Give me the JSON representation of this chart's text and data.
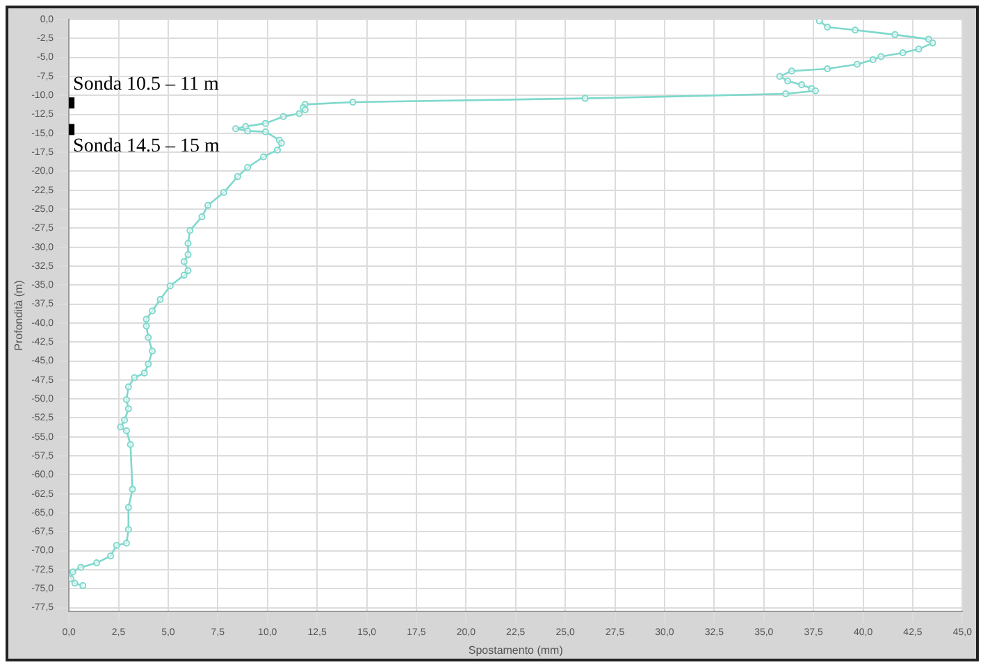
{
  "chart_data": {
    "type": "line",
    "xlabel": "Spostamento (mm)",
    "ylabel": "Profondità (m)",
    "series": [
      {
        "color": "#7fd8cc",
        "x": [
          37.8,
          38.2,
          39.6,
          41.6,
          43.3,
          43.5,
          42.8,
          42.0,
          40.9,
          40.5,
          39.7,
          38.2,
          36.4,
          35.8,
          36.2,
          36.9,
          37.4,
          37.6,
          36.1,
          26.0,
          14.3,
          11.9,
          11.8,
          11.9,
          11.6,
          10.8,
          9.9,
          8.9,
          8.4,
          9.0,
          9.9,
          10.6,
          10.7,
          10.5,
          9.8,
          9.0,
          8.5,
          7.8,
          7.0,
          6.7,
          6.1,
          6.0,
          6.0,
          5.8,
          6.0,
          5.8,
          5.1,
          4.6,
          4.2,
          3.9,
          3.9,
          4.0,
          4.2,
          4.0,
          3.8,
          3.3,
          3.0,
          2.9,
          3.0,
          2.8,
          2.6,
          2.9,
          3.1,
          3.2,
          3.0,
          3.0,
          2.9,
          2.4,
          2.1,
          1.4,
          0.6,
          0.2,
          0.1,
          0.3,
          0.7
        ],
        "values": [
          -0.2,
          -1.0,
          -1.4,
          -2.0,
          -2.6,
          -3.1,
          -3.9,
          -4.4,
          -4.9,
          -5.3,
          -5.9,
          -6.5,
          -6.8,
          -7.5,
          -8.1,
          -8.6,
          -9.1,
          -9.4,
          -9.8,
          -10.4,
          -10.9,
          -11.2,
          -11.6,
          -11.9,
          -12.4,
          -12.8,
          -13.7,
          -14.1,
          -14.4,
          -14.7,
          -14.8,
          -15.9,
          -16.3,
          -17.2,
          -18.1,
          -19.5,
          -20.7,
          -22.8,
          -24.5,
          -26.0,
          -27.8,
          -29.5,
          -31.0,
          -31.9,
          -33.1,
          -33.7,
          -35.1,
          -36.9,
          -38.4,
          -39.5,
          -40.4,
          -41.9,
          -43.7,
          -45.4,
          -46.6,
          -47.2,
          -48.4,
          -50.1,
          -51.3,
          -52.8,
          -53.7,
          -54.2,
          -56.0,
          -61.9,
          -64.3,
          -67.2,
          -69.0,
          -69.3,
          -70.7,
          -71.6,
          -72.2,
          -72.8,
          -73.7,
          -74.3,
          -74.6
        ]
      }
    ],
    "xlim": [
      0,
      45
    ],
    "xticks": [
      {
        "value": 0,
        "label": "0,0"
      },
      {
        "value": 2.5,
        "label": "2,5"
      },
      {
        "value": 5,
        "label": "5,0"
      },
      {
        "value": 7.5,
        "label": "7,5"
      },
      {
        "value": 10,
        "label": "10,0"
      },
      {
        "value": 12.5,
        "label": "12,5"
      },
      {
        "value": 15,
        "label": "15,0"
      },
      {
        "value": 17.5,
        "label": "17,5"
      },
      {
        "value": 20,
        "label": "20,0"
      },
      {
        "value": 22.5,
        "label": "22,5"
      },
      {
        "value": 25,
        "label": "25,0"
      },
      {
        "value": 27.5,
        "label": "27,5"
      },
      {
        "value": 30,
        "label": "30,0"
      },
      {
        "value": 32.5,
        "label": "32,5"
      },
      {
        "value": 35,
        "label": "35,0"
      },
      {
        "value": 37.5,
        "label": "37,5"
      },
      {
        "value": 40,
        "label": "40,0"
      },
      {
        "value": 42.5,
        "label": "42,5"
      },
      {
        "value": 45,
        "label": "45,0"
      }
    ],
    "ylim": [
      -78,
      0
    ],
    "yticks": [
      {
        "value": 0,
        "label": "0,0"
      },
      {
        "value": -2.5,
        "label": "-2,5"
      },
      {
        "value": -5,
        "label": "-5,0"
      },
      {
        "value": -7.5,
        "label": "-7,5"
      },
      {
        "value": -10,
        "label": "-10,0"
      },
      {
        "value": -12.5,
        "label": "-12,5"
      },
      {
        "value": -15,
        "label": "-15,0"
      },
      {
        "value": -17.5,
        "label": "-17,5"
      },
      {
        "value": -20,
        "label": "-20,0"
      },
      {
        "value": -22.5,
        "label": "-22,5"
      },
      {
        "value": -25,
        "label": "-25,0"
      },
      {
        "value": -27.5,
        "label": "-27,5"
      },
      {
        "value": -30,
        "label": "-30,0"
      },
      {
        "value": -32.5,
        "label": "-32,5"
      },
      {
        "value": -35,
        "label": "-35,0"
      },
      {
        "value": -37.5,
        "label": "-37,5"
      },
      {
        "value": -40,
        "label": "-40,0"
      },
      {
        "value": -42.5,
        "label": "-42,5"
      },
      {
        "value": -45,
        "label": "-45,0"
      },
      {
        "value": -47.5,
        "label": "-47,5"
      },
      {
        "value": -50,
        "label": "-50,0"
      },
      {
        "value": -52.5,
        "label": "-52,5"
      },
      {
        "value": -55,
        "label": "-55,0"
      },
      {
        "value": -57.5,
        "label": "-57,5"
      },
      {
        "value": -60,
        "label": "-60,0"
      },
      {
        "value": -62.5,
        "label": "-62,5"
      },
      {
        "value": -65,
        "label": "-65,0"
      },
      {
        "value": -67.5,
        "label": "-67,5"
      },
      {
        "value": -70,
        "label": "-70,0"
      },
      {
        "value": -72.5,
        "label": "-72,5"
      },
      {
        "value": -75,
        "label": "-75,0"
      },
      {
        "value": -77.5,
        "label": "-77,5"
      }
    ],
    "grid": true,
    "marker": "circle",
    "legend": false,
    "annotations": [
      {
        "text": "Sonda 10.5 – 11 m",
        "x": 0,
        "y": -11
      },
      {
        "text": "Sonda 14.5 – 15 m",
        "x": 0,
        "y": -14.5
      }
    ]
  }
}
